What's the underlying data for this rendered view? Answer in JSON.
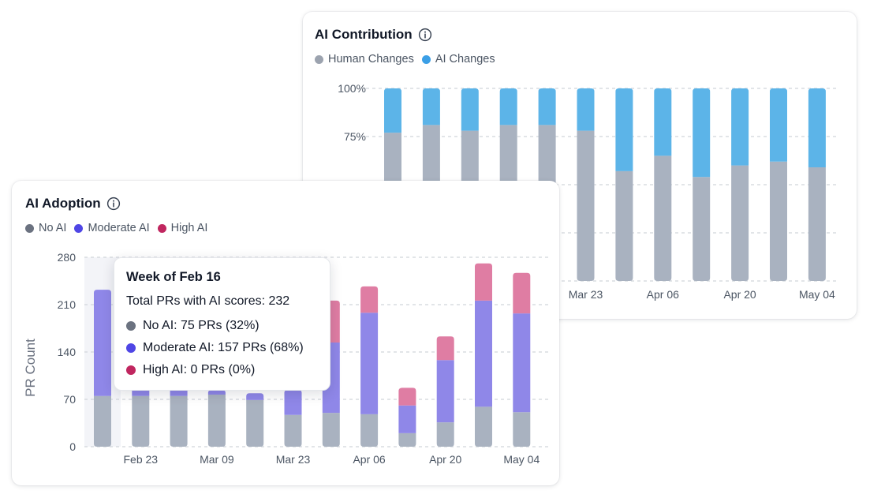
{
  "colors": {
    "human": "#a9b2c0",
    "ai_changes": "#5cb4e8",
    "no_ai": "#a9b2c0",
    "moderate_ai": "#8f87e8",
    "high_ai": "#df7da3",
    "legend_no_ai": "#6b7280",
    "legend_moderate_ai": "#4f46e5",
    "legend_high_ai": "#c0265f",
    "legend_human": "#9ca3af",
    "legend_ai_changes": "#3b9fe6"
  },
  "contribution": {
    "title": "AI Contribution",
    "info_icon": "info-icon",
    "legend": [
      "Human Changes",
      "AI Changes"
    ]
  },
  "adoption": {
    "title": "AI Adoption",
    "info_icon": "info-icon",
    "legend": [
      "No AI",
      "Moderate AI",
      "High AI"
    ]
  },
  "tooltip": {
    "title": "Week of Feb 16",
    "total": "Total PRs with AI scores: 232",
    "rows": [
      "No AI: 75 PRs (32%)",
      "Moderate AI: 157 PRs (68%)",
      "High AI: 0 PRs (0%)"
    ]
  },
  "chart_data": [
    {
      "type": "bar",
      "stacked": true,
      "title": "AI Contribution",
      "series": [
        {
          "name": "Human Changes",
          "values": [
            77,
            81,
            78,
            81,
            81,
            78,
            57,
            65,
            54,
            60,
            62,
            59
          ]
        },
        {
          "name": "AI Changes",
          "values": [
            23,
            19,
            22,
            19,
            19,
            22,
            43,
            35,
            46,
            40,
            38,
            41
          ]
        }
      ],
      "x_tick_labels": [
        "Mar 23",
        "Apr 06",
        "Apr 20",
        "May 04"
      ],
      "y_tick_labels": [
        "100%",
        "75%"
      ],
      "ylim": [
        0,
        100
      ],
      "grid": true,
      "legend_position": "top-left"
    },
    {
      "type": "bar",
      "stacked": true,
      "title": "AI Adoption",
      "ylabel": "PR Count",
      "series": [
        {
          "name": "No AI",
          "values": [
            75,
            75,
            75,
            77,
            69,
            47,
            50,
            48,
            20,
            36,
            59,
            51
          ]
        },
        {
          "name": "Moderate AI",
          "values": [
            157,
            125,
            125,
            6,
            10,
            37,
            104,
            150,
            41,
            92,
            157,
            146
          ]
        },
        {
          "name": "High AI",
          "values": [
            0,
            0,
            0,
            0,
            0,
            0,
            62,
            39,
            26,
            35,
            55,
            60
          ]
        }
      ],
      "x_tick_labels": [
        "Feb 23",
        "Mar 09",
        "Mar 23",
        "Apr 06",
        "Apr 20",
        "May 04"
      ],
      "y_ticks": [
        0,
        70,
        140,
        210,
        280
      ],
      "ylim": [
        0,
        280
      ],
      "grid": true,
      "highlighted_index": 0,
      "legend_position": "top-left"
    }
  ]
}
